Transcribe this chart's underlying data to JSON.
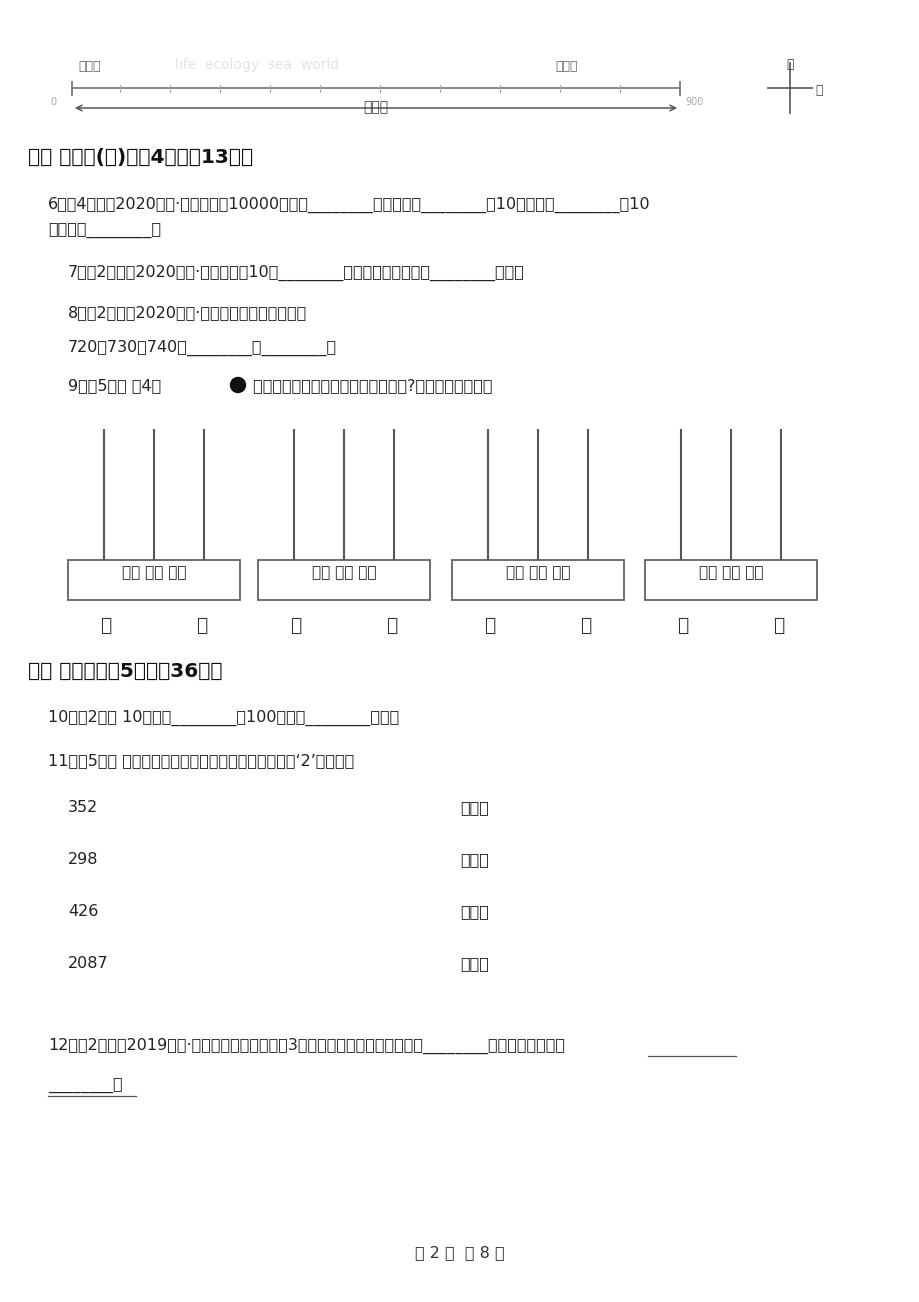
{
  "bg_color": "#ffffff",
  "section2_header": "二、 数一数(二)（兲4题；內13分）",
  "section3_header": "三、 拨一拨（兲5题；內36分）",
  "q6_line1": "6．（4分）（2020二下·英山期末）10000是一个________位数，读作________。10个一百是________，10",
  "q6_line2": "个一千是________。",
  "q7": "7．（2分）（2020二下·会宁期中）10个________是一万；一千里面有________个百。",
  "q8": "8．（2分）（2020二下·丰润期末）按规律填空。",
  "q8_pattern": "720，730，740，________，________。",
  "q9_part1": "9．（5分） 用4颗",
  "q9_part2": " 在计数器上分别可以表示哪些两位数?画一画，写一写。",
  "q10": "10．（2分） 10个十是________，100里面有________个一。",
  "q11": "11．（5分） 先在算盘上拨一拨，再判断下面数字中的‘2’表什么。",
  "q11_numbers": [
    "352",
    "298",
    "426",
    "2087"
  ],
  "q11_answers": [
    "两个千",
    "两个百",
    "两个一",
    "两个十"
  ],
  "q12": "12．（2分）（2019二下·苏州期末）在算盘上用3个算珠表示出最小的三位数是________，最大的四位数是",
  "q12_line2": "________。",
  "footer": "第 2 页  共 8 页",
  "abacus_label": "百位 十位 个位",
  "hai_gui_dao": "海龟岛",
  "hai_bei_guan": "海贝馆",
  "bei": "北",
  "dong": "东",
  "jiu_bai_mi": "九百米"
}
